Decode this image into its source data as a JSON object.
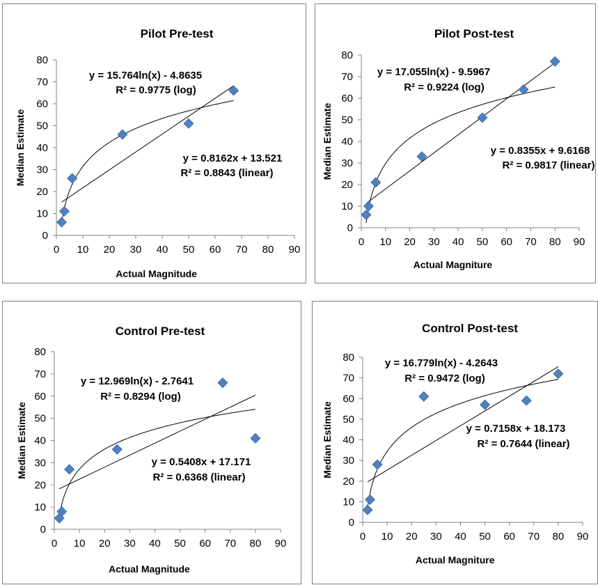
{
  "chart_data": [
    {
      "type": "scatter",
      "title": "Pilot Pre-test",
      "xlabel": "Actual Magnitude",
      "ylabel": "Median Estimate",
      "xlim": [
        0,
        90
      ],
      "ylim": [
        0,
        80
      ],
      "xticks": [
        "0",
        "10",
        "20",
        "30",
        "40",
        "50",
        "60",
        "70",
        "80",
        "90"
      ],
      "yticks": [
        "0",
        "10",
        "20",
        "30",
        "40",
        "50",
        "60",
        "70",
        "80"
      ],
      "grid": false,
      "marker_color": "#4f81bd",
      "points": [
        {
          "x": 2,
          "y": 6
        },
        {
          "x": 3,
          "y": 11
        },
        {
          "x": 6,
          "y": 26
        },
        {
          "x": 25,
          "y": 46
        },
        {
          "x": 50,
          "y": 51
        },
        {
          "x": 67,
          "y": 66
        }
      ],
      "trendlines": {
        "log": {
          "a": 15.764,
          "b": -4.8635,
          "equation": "y = 15.764ln(x) - 4.8635",
          "r2": "R² = 0.9775 (log)"
        },
        "linear": {
          "m": 0.8162,
          "c": 13.521,
          "equation": "y = 0.8162x + 13.521",
          "r2": "R² = 0.8843 (linear)"
        },
        "x_range": [
          2,
          67
        ]
      }
    },
    {
      "type": "scatter",
      "title": "Pilot  Post-test",
      "xlabel": "Actual Magniture",
      "ylabel": "Median Estimate",
      "xlim": [
        0,
        90
      ],
      "ylim": [
        0,
        80
      ],
      "xticks": [
        "0",
        "10",
        "20",
        "30",
        "40",
        "50",
        "60",
        "70",
        "80",
        "90"
      ],
      "yticks": [
        "0",
        "10",
        "20",
        "30",
        "40",
        "50",
        "60",
        "70",
        "80"
      ],
      "grid": false,
      "marker_color": "#4f81bd",
      "points": [
        {
          "x": 2,
          "y": 6
        },
        {
          "x": 3,
          "y": 10
        },
        {
          "x": 6,
          "y": 21
        },
        {
          "x": 25,
          "y": 33
        },
        {
          "x": 50,
          "y": 51
        },
        {
          "x": 67,
          "y": 64
        },
        {
          "x": 80,
          "y": 77
        }
      ],
      "trendlines": {
        "log": {
          "a": 17.055,
          "b": -9.5967,
          "equation": "y = 17.055ln(x) - 9.5967",
          "r2": "R² = 0.9224 (log)"
        },
        "linear": {
          "m": 0.8355,
          "c": 9.6168,
          "equation": "y = 0.8355x + 9.6168",
          "r2": "R² = 0.9817 (linear)"
        },
        "x_range": [
          2,
          80
        ]
      }
    },
    {
      "type": "scatter",
      "title": "Control Pre-test",
      "xlabel": "Actual Magnitude",
      "ylabel": "Median Estimate",
      "xlim": [
        0,
        90
      ],
      "ylim": [
        0,
        80
      ],
      "xticks": [
        "0",
        "10",
        "20",
        "30",
        "40",
        "50",
        "60",
        "70",
        "80",
        "90"
      ],
      "yticks": [
        "0",
        "10",
        "20",
        "30",
        "40",
        "50",
        "60",
        "70",
        "80"
      ],
      "grid": false,
      "marker_color": "#4f81bd",
      "points": [
        {
          "x": 2,
          "y": 5
        },
        {
          "x": 3,
          "y": 8
        },
        {
          "x": 6,
          "y": 27
        },
        {
          "x": 25,
          "y": 36
        },
        {
          "x": 67,
          "y": 66
        },
        {
          "x": 80,
          "y": 41
        }
      ],
      "trendlines": {
        "log": {
          "a": 12.969,
          "b": -2.7641,
          "equation": "y = 12.969ln(x) - 2.7641",
          "r2": "R² = 0.8294 (log)"
        },
        "linear": {
          "m": 0.5408,
          "c": 17.171,
          "equation": "y = 0.5408x + 17.171",
          "r2": "R² = 0.6368 (linear)"
        },
        "x_range": [
          2,
          80
        ]
      }
    },
    {
      "type": "scatter",
      "title": "Control Post-test",
      "xlabel": "Actual Magniture",
      "ylabel": "Median Estimate",
      "xlim": [
        0,
        90
      ],
      "ylim": [
        0,
        80
      ],
      "xticks": [
        "0",
        "10",
        "20",
        "30",
        "40",
        "50",
        "60",
        "70",
        "80",
        "90"
      ],
      "yticks": [
        "0",
        "10",
        "20",
        "30",
        "40",
        "50",
        "60",
        "70",
        "80"
      ],
      "grid": false,
      "marker_color": "#4f81bd",
      "points": [
        {
          "x": 2,
          "y": 6
        },
        {
          "x": 3,
          "y": 11
        },
        {
          "x": 6,
          "y": 28
        },
        {
          "x": 25,
          "y": 61
        },
        {
          "x": 50,
          "y": 57
        },
        {
          "x": 67,
          "y": 59
        },
        {
          "x": 80,
          "y": 72
        }
      ],
      "trendlines": {
        "log": {
          "a": 16.779,
          "b": -4.2643,
          "equation": "y = 16.779ln(x) - 4.2643",
          "r2": "R² = 0.9472 (log)"
        },
        "linear": {
          "m": 0.7158,
          "c": 18.173,
          "equation": "y = 0.7158x + 18.173",
          "r2": "R² = 0.7644 (linear)"
        },
        "x_range": [
          2,
          80
        ]
      }
    }
  ]
}
